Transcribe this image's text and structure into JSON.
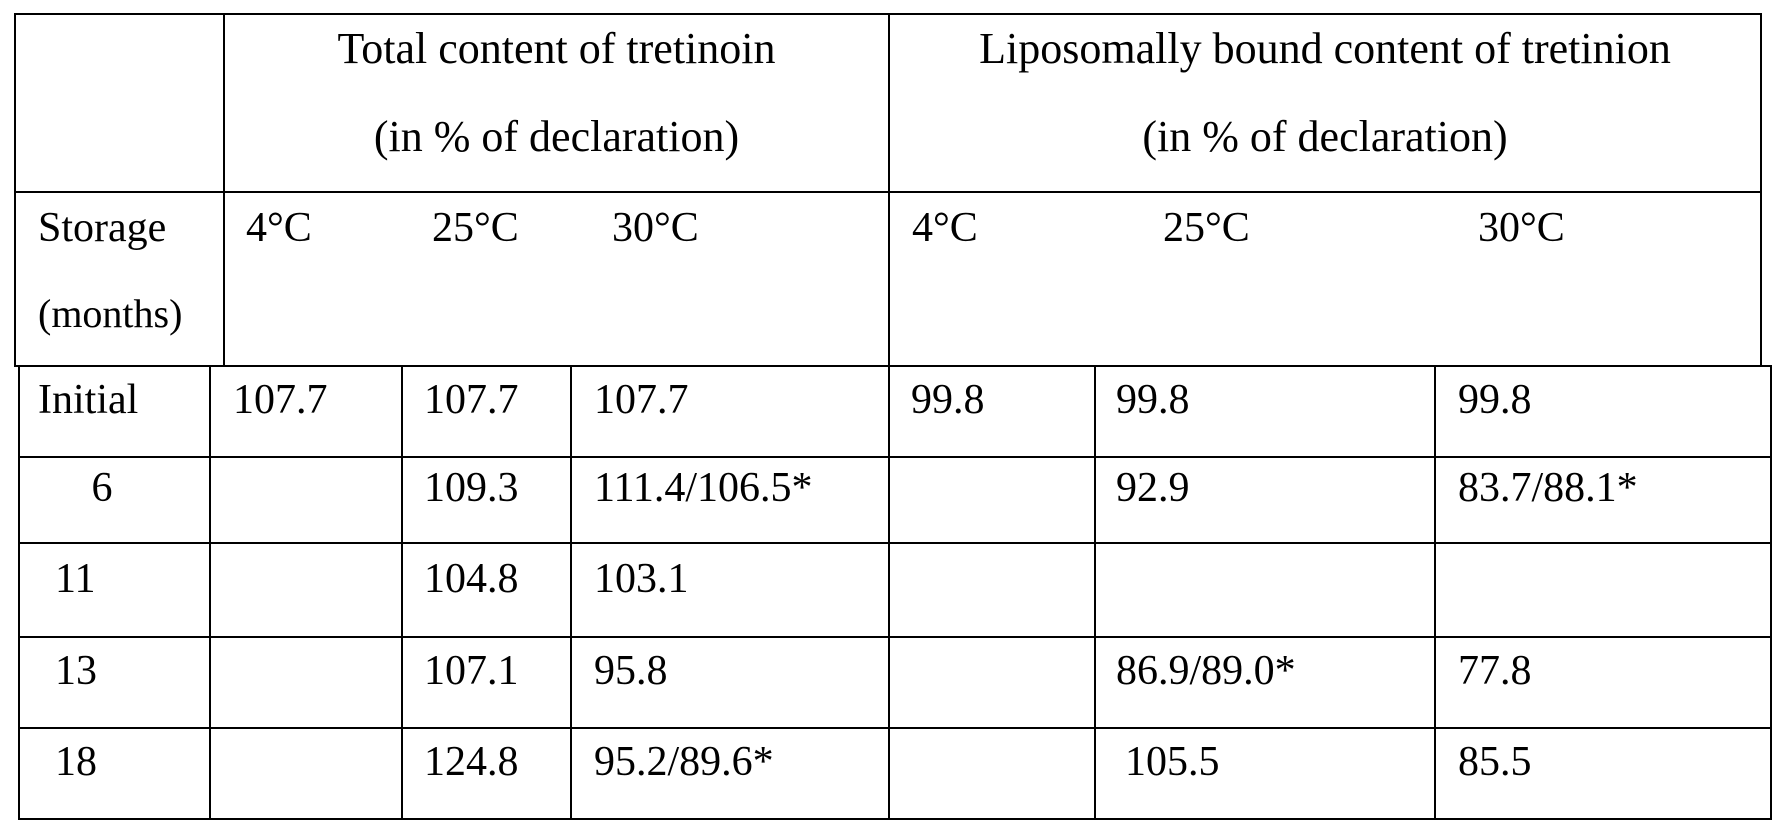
{
  "table": {
    "group_headers": [
      {
        "line1": "Total content of tretinoin",
        "line2": "(in % of declaration)"
      },
      {
        "line1": "Liposomally bound content of tretinion",
        "line2": "(in % of declaration)"
      }
    ],
    "storage_label_line1": "Storage",
    "storage_label_line2": "(months)",
    "temps": [
      "4°C",
      "25°C",
      "30°C",
      "4°C",
      "25°C",
      "30°C"
    ],
    "rows": [
      {
        "label": "Initial",
        "cells": [
          "107.7",
          "107.7",
          "107.7",
          "99.8",
          "99.8",
          "99.8"
        ]
      },
      {
        "label": "6",
        "cells": [
          "",
          "109.3",
          "111.4/106.5*",
          "",
          "92.9",
          "83.7/88.1*"
        ]
      },
      {
        "label": "11",
        "cells": [
          "",
          "104.8",
          "103.1",
          "",
          "",
          ""
        ]
      },
      {
        "label": "13",
        "cells": [
          "",
          "107.1",
          "95.8",
          "",
          "86.9/89.0*",
          "77.8"
        ]
      },
      {
        "label": "18",
        "cells": [
          "",
          "124.8",
          "95.2/89.6*",
          "",
          "105.5",
          "85.5"
        ]
      }
    ]
  }
}
